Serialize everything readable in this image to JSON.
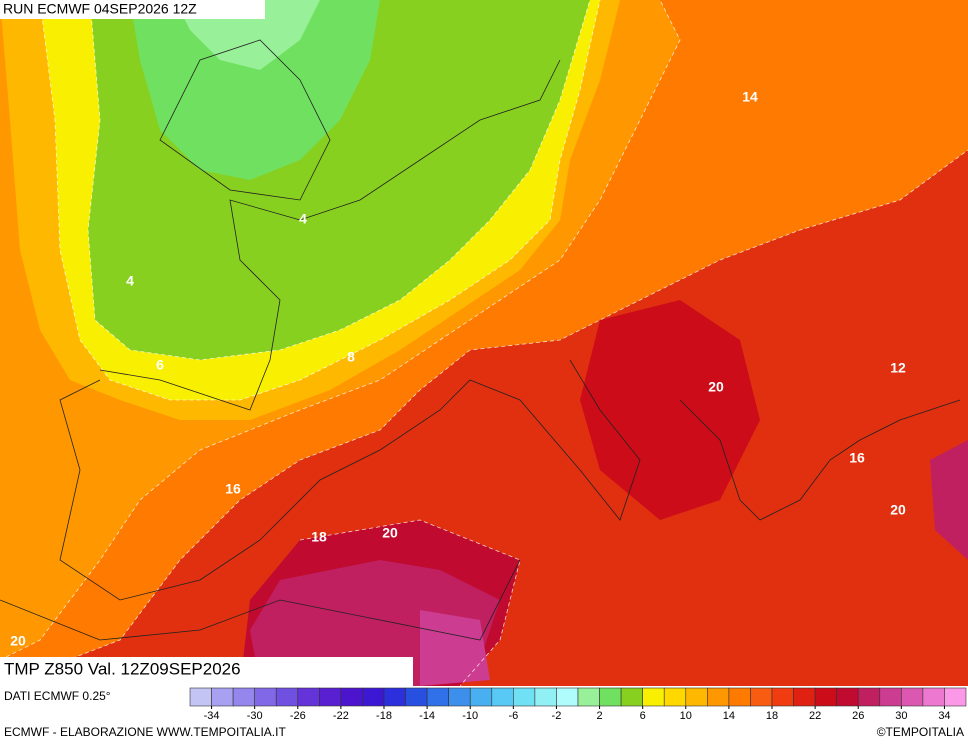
{
  "header": {
    "run": "RUN ECMWF 04SEP2026 12Z"
  },
  "map": {
    "contour_labels": [
      "14",
      "4",
      "4",
      "6",
      "8",
      "20",
      "12",
      "16",
      "16",
      "18",
      "20",
      "20",
      "20"
    ]
  },
  "footer": {
    "title": "TMP Z850 Val. 12Z09SEP2026",
    "source": "DATI ECMWF 0.25°",
    "credit": "ECMWF - ELABORAZIONE WWW.TEMPOITALIA.IT",
    "copyright": "©TEMPOITALIA"
  },
  "legend": {
    "range": [
      -36,
      36
    ],
    "colors": [
      "#c4c4f4",
      "#a8a0f0",
      "#9486ec",
      "#8068e6",
      "#7050e0",
      "#6434d8",
      "#5820d0",
      "#4c14cc",
      "#3c18d4",
      "#2c30dc",
      "#2850e0",
      "#3070e8",
      "#3c90ec",
      "#48b0f0",
      "#58c8f4",
      "#70e0f4",
      "#90f0f4",
      "#b0fcfc",
      "#98f098",
      "#70e060",
      "#88d020",
      "#f8f000",
      "#ffd800",
      "#ffb800",
      "#ff9800",
      "#ff7a00",
      "#f85c10",
      "#f03c10",
      "#e02010",
      "#cc0c18",
      "#c00a30",
      "#c02060",
      "#cc3c90",
      "#dc58b0",
      "#ec78d0",
      "#fc98e8"
    ],
    "ticks": [
      -34,
      -30,
      -26,
      -22,
      -18,
      -14,
      -10,
      -6,
      -2,
      2,
      6,
      10,
      14,
      18,
      22,
      26,
      30,
      34
    ]
  }
}
